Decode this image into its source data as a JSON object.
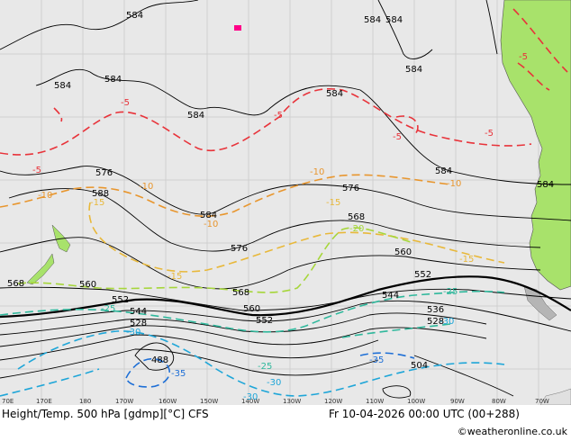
{
  "map": {
    "title": "Height/Temp. 500 hPa [gdmp][°C] CFS",
    "valid_time": "Fr 10-04-2026 00:00 UTC (00+288)",
    "credit": "©weatheronline.co.uk",
    "longitude_ticks": [
      "70E",
      "170E",
      "180",
      "170W",
      "160W",
      "150W",
      "140W",
      "130W",
      "120W",
      "110W",
      "100W",
      "90W",
      "80W",
      "70W"
    ],
    "colors": {
      "ocean": "#e8e8e8",
      "land": "#a8e26b",
      "height_contour": "#000000",
      "temp_minus5": "#e8333a",
      "temp_minus10": "#e8962e",
      "temp_minus15": "#e8b83a",
      "temp_minus20": "#a6d63a",
      "temp_minus25": "#2fb89c",
      "temp_minus30": "#1fa6d8",
      "temp_minus35": "#1e6fd6",
      "highlight": "#ff0088"
    },
    "height_labels": [
      {
        "text": "584",
        "id": "h584a"
      },
      {
        "text": "584",
        "id": "h584b"
      },
      {
        "text": "584",
        "id": "h584c"
      },
      {
        "text": "584",
        "id": "h584d"
      },
      {
        "text": "584",
        "id": "h584e"
      },
      {
        "text": "584",
        "id": "h584f"
      },
      {
        "text": "584",
        "id": "h584g"
      },
      {
        "text": "584",
        "id": "h584h"
      },
      {
        "text": "584",
        "id": "h584i"
      },
      {
        "text": "584",
        "id": "h584j"
      },
      {
        "text": "584",
        "id": "h584k"
      },
      {
        "text": "576",
        "id": "h576a"
      },
      {
        "text": "576",
        "id": "h576b"
      },
      {
        "text": "576",
        "id": "h576c"
      },
      {
        "text": "588",
        "id": "h588a"
      },
      {
        "text": "568",
        "id": "h568a"
      },
      {
        "text": "568",
        "id": "h568b"
      },
      {
        "text": "568",
        "id": "h568c"
      },
      {
        "text": "560",
        "id": "h560a"
      },
      {
        "text": "560",
        "id": "h560b"
      },
      {
        "text": "560",
        "id": "h560c"
      },
      {
        "text": "552",
        "id": "h552a"
      },
      {
        "text": "552",
        "id": "h552b"
      },
      {
        "text": "552",
        "id": "h552c"
      },
      {
        "text": "544",
        "id": "h544a"
      },
      {
        "text": "544",
        "id": "h544b"
      },
      {
        "text": "536",
        "id": "h536a"
      },
      {
        "text": "528",
        "id": "h528a"
      },
      {
        "text": "528",
        "id": "h528b"
      },
      {
        "text": "504",
        "id": "h504a"
      },
      {
        "text": "488",
        "id": "h488a"
      }
    ],
    "temp_labels": [
      {
        "text": "-5",
        "id": "t5a"
      },
      {
        "text": "-5",
        "id": "t5b"
      },
      {
        "text": "-5",
        "id": "t5c"
      },
      {
        "text": "-5",
        "id": "t5d"
      },
      {
        "text": "-5",
        "id": "t5e"
      },
      {
        "text": "-5",
        "id": "t5f"
      },
      {
        "text": "-10",
        "id": "t10a"
      },
      {
        "text": "-10",
        "id": "t10b"
      },
      {
        "text": "-10",
        "id": "t10c"
      },
      {
        "text": "-10",
        "id": "t10d"
      },
      {
        "text": "-10",
        "id": "t10e"
      },
      {
        "text": "-15",
        "id": "t15a"
      },
      {
        "text": "-15",
        "id": "t15b"
      },
      {
        "text": "-15",
        "id": "t15c"
      },
      {
        "text": "-15",
        "id": "t15d"
      },
      {
        "text": "-20",
        "id": "t20a"
      },
      {
        "text": "-25",
        "id": "t25a"
      },
      {
        "text": "-25",
        "id": "t25b"
      },
      {
        "text": "-25",
        "id": "t25c"
      },
      {
        "text": "-30",
        "id": "t30a"
      },
      {
        "text": "-30",
        "id": "t30b"
      },
      {
        "text": "-30",
        "id": "t30c"
      },
      {
        "text": "-30",
        "id": "t30d"
      },
      {
        "text": "-35",
        "id": "t35a"
      },
      {
        "text": "-35",
        "id": "t35b"
      }
    ]
  }
}
